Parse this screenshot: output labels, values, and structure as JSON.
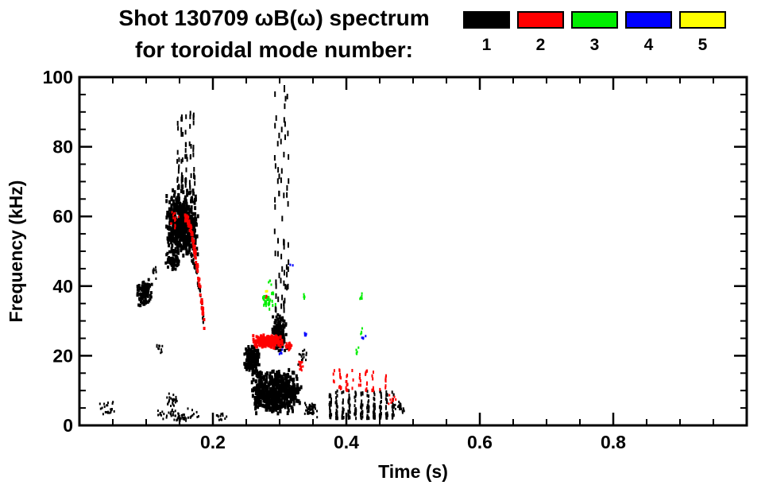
{
  "header": {
    "title_line1": "Shot 130709 ωB(ω) spectrum",
    "title_line2": "for toroidal mode number:"
  },
  "chart_data": {
    "type": "scatter",
    "title": "Shot 130709 ωB(ω) spectrum for toroidal mode number: 1 2 3 4 5",
    "xlabel": "Time (s)",
    "ylabel": "Frequency (kHz)",
    "xlim": [
      0,
      1.0
    ],
    "ylim": [
      0,
      100
    ],
    "grid": false,
    "x_ticks": {
      "major": [
        0.2,
        0.4,
        0.6,
        0.8
      ],
      "labels": [
        "0.2",
        "0.4",
        "0.6",
        "0.8"
      ],
      "minor_step": 0.05
    },
    "y_ticks": {
      "major": [
        0,
        20,
        40,
        60,
        80,
        100
      ],
      "labels": [
        "0",
        "20",
        "40",
        "60",
        "80",
        "100"
      ],
      "minor_step": 5
    },
    "legend": [
      {
        "label": "1",
        "color": "#000000"
      },
      {
        "label": "2",
        "color": "#ff0000"
      },
      {
        "label": "3",
        "color": "#00ee00"
      },
      {
        "label": "4",
        "color": "#0000ff"
      },
      {
        "label": "5",
        "color": "#ffff00"
      }
    ],
    "legend_position": "top-right",
    "clusters": [
      {
        "mode": 1,
        "shape": "blob",
        "t": [
          0.03,
          0.055
        ],
        "f": [
          2,
          8
        ],
        "n": 22,
        "dot": [
          2,
          3
        ]
      },
      {
        "mode": 1,
        "shape": "blob",
        "t": [
          0.085,
          0.11
        ],
        "f": [
          34,
          42
        ],
        "n": 100,
        "dot": [
          3,
          4
        ]
      },
      {
        "mode": 1,
        "shape": "blob",
        "t": [
          0.105,
          0.116
        ],
        "f": [
          42,
          46
        ],
        "n": 10,
        "dot": [
          2,
          3
        ]
      },
      {
        "mode": 1,
        "shape": "blob",
        "t": [
          0.128,
          0.18
        ],
        "f": [
          48,
          68
        ],
        "n": 550,
        "dot": [
          3,
          5
        ]
      },
      {
        "mode": 1,
        "shape": "blob",
        "t": [
          0.128,
          0.152
        ],
        "f": [
          44,
          50
        ],
        "n": 60,
        "dot": [
          3,
          4
        ]
      },
      {
        "mode": 1,
        "shape": "streaks",
        "t": [
          0.148,
          0.172
        ],
        "f": [
          68,
          93
        ],
        "n": 70,
        "dot": [
          2,
          6
        ]
      },
      {
        "mode": 1,
        "shape": "blob",
        "t": [
          0.115,
          0.185
        ],
        "f": [
          1,
          5
        ],
        "n": 60,
        "dot": [
          2,
          3
        ]
      },
      {
        "mode": 1,
        "shape": "blob",
        "t": [
          0.13,
          0.15
        ],
        "f": [
          5,
          10
        ],
        "n": 25,
        "dot": [
          2,
          3
        ]
      },
      {
        "mode": 1,
        "shape": "blob",
        "t": [
          0.112,
          0.128
        ],
        "f": [
          20,
          24
        ],
        "n": 10,
        "dot": [
          2,
          3
        ]
      },
      {
        "mode": 1,
        "shape": "arc",
        "t": [
          0.168,
          0.186
        ],
        "f": [
          30,
          48
        ],
        "n": 40,
        "dot": [
          2,
          4
        ]
      },
      {
        "mode": 1,
        "shape": "blob",
        "t": [
          0.205,
          0.222
        ],
        "f": [
          1,
          4
        ],
        "n": 12,
        "dot": [
          2,
          3
        ]
      },
      {
        "mode": 1,
        "shape": "blob",
        "t": [
          0.246,
          0.27
        ],
        "f": [
          14,
          24
        ],
        "n": 150,
        "dot": [
          3,
          4
        ]
      },
      {
        "mode": 1,
        "shape": "blob",
        "t": [
          0.256,
          0.334
        ],
        "f": [
          3,
          16
        ],
        "n": 550,
        "dot": [
          3,
          5
        ]
      },
      {
        "mode": 1,
        "shape": "blob",
        "t": [
          0.287,
          0.312
        ],
        "f": [
          21,
          32
        ],
        "n": 160,
        "dot": [
          3,
          4
        ]
      },
      {
        "mode": 1,
        "shape": "streaks",
        "t": [
          0.294,
          0.312
        ],
        "f": [
          33,
          97
        ],
        "n": 70,
        "dot": [
          2,
          7
        ]
      },
      {
        "mode": 1,
        "shape": "blob",
        "t": [
          0.334,
          0.358
        ],
        "f": [
          2,
          7
        ],
        "n": 50,
        "dot": [
          2,
          3
        ]
      },
      {
        "mode": 1,
        "shape": "blob",
        "t": [
          0.327,
          0.342
        ],
        "f": [
          17,
          22
        ],
        "n": 15,
        "dot": [
          2,
          3
        ]
      },
      {
        "mode": 1,
        "shape": "streaks",
        "t": [
          0.376,
          0.47
        ],
        "f": [
          2,
          10
        ],
        "n": 260,
        "dot": [
          2,
          4
        ]
      },
      {
        "mode": 1,
        "shape": "blob",
        "t": [
          0.47,
          0.49
        ],
        "f": [
          3,
          7
        ],
        "n": 20,
        "dot": [
          2,
          3
        ]
      },
      {
        "mode": 2,
        "shape": "arc",
        "t": [
          0.158,
          0.187
        ],
        "f": [
          29,
          60
        ],
        "n": 70,
        "dot": [
          3,
          4
        ]
      },
      {
        "mode": 2,
        "shape": "blob",
        "t": [
          0.135,
          0.15
        ],
        "f": [
          55,
          62
        ],
        "n": 15,
        "dot": [
          2,
          3
        ]
      },
      {
        "mode": 2,
        "shape": "blob",
        "t": [
          0.258,
          0.308
        ],
        "f": [
          22,
          26
        ],
        "n": 200,
        "dot": [
          3,
          4
        ]
      },
      {
        "mode": 2,
        "shape": "blob",
        "t": [
          0.308,
          0.32
        ],
        "f": [
          21,
          24
        ],
        "n": 30,
        "dot": [
          2,
          3
        ]
      },
      {
        "mode": 2,
        "shape": "blob",
        "t": [
          0.277,
          0.284
        ],
        "f": [
          36,
          38
        ],
        "n": 5,
        "dot": [
          2,
          3
        ]
      },
      {
        "mode": 2,
        "shape": "blob",
        "t": [
          0.327,
          0.337
        ],
        "f": [
          15,
          19
        ],
        "n": 14,
        "dot": [
          2,
          3
        ]
      },
      {
        "mode": 2,
        "shape": "streaks",
        "t": [
          0.381,
          0.459
        ],
        "f": [
          10,
          16
        ],
        "n": 60,
        "dot": [
          2,
          4
        ]
      },
      {
        "mode": 2,
        "shape": "blob",
        "t": [
          0.459,
          0.477
        ],
        "f": [
          6,
          9
        ],
        "n": 10,
        "dot": [
          2,
          3
        ]
      },
      {
        "mode": 3,
        "shape": "blob",
        "t": [
          0.272,
          0.295
        ],
        "f": [
          33,
          39
        ],
        "n": 30,
        "dot": [
          2,
          4
        ]
      },
      {
        "mode": 3,
        "shape": "blob",
        "t": [
          0.282,
          0.288
        ],
        "f": [
          40,
          43
        ],
        "n": 4,
        "dot": [
          2,
          3
        ]
      },
      {
        "mode": 3,
        "shape": "blob",
        "t": [
          0.333,
          0.34
        ],
        "f": [
          36,
          38
        ],
        "n": 5,
        "dot": [
          2,
          3
        ]
      },
      {
        "mode": 3,
        "shape": "blob",
        "t": [
          0.417,
          0.426
        ],
        "f": [
          35,
          38
        ],
        "n": 6,
        "dot": [
          2,
          3
        ]
      },
      {
        "mode": 3,
        "shape": "blob",
        "t": [
          0.41,
          0.422
        ],
        "f": [
          20,
          23
        ],
        "n": 5,
        "dot": [
          2,
          3
        ]
      },
      {
        "mode": 3,
        "shape": "blob",
        "t": [
          0.418,
          0.426
        ],
        "f": [
          26,
          28
        ],
        "n": 4,
        "dot": [
          2,
          3
        ]
      },
      {
        "mode": 4,
        "shape": "blob",
        "t": [
          0.299,
          0.307
        ],
        "f": [
          20,
          22
        ],
        "n": 5,
        "dot": [
          2,
          3
        ]
      },
      {
        "mode": 4,
        "shape": "blob",
        "t": [
          0.337,
          0.343
        ],
        "f": [
          25,
          27
        ],
        "n": 4,
        "dot": [
          2,
          3
        ]
      },
      {
        "mode": 4,
        "shape": "blob",
        "t": [
          0.423,
          0.43
        ],
        "f": [
          24,
          26
        ],
        "n": 4,
        "dot": [
          2,
          3
        ]
      },
      {
        "mode": 4,
        "shape": "blob",
        "t": [
          0.315,
          0.321
        ],
        "f": [
          45,
          47
        ],
        "n": 2,
        "dot": [
          2,
          3
        ]
      },
      {
        "mode": 5,
        "shape": "blob",
        "t": [
          0.278,
          0.283
        ],
        "f": [
          37,
          39
        ],
        "n": 2,
        "dot": [
          3,
          3
        ]
      }
    ]
  }
}
